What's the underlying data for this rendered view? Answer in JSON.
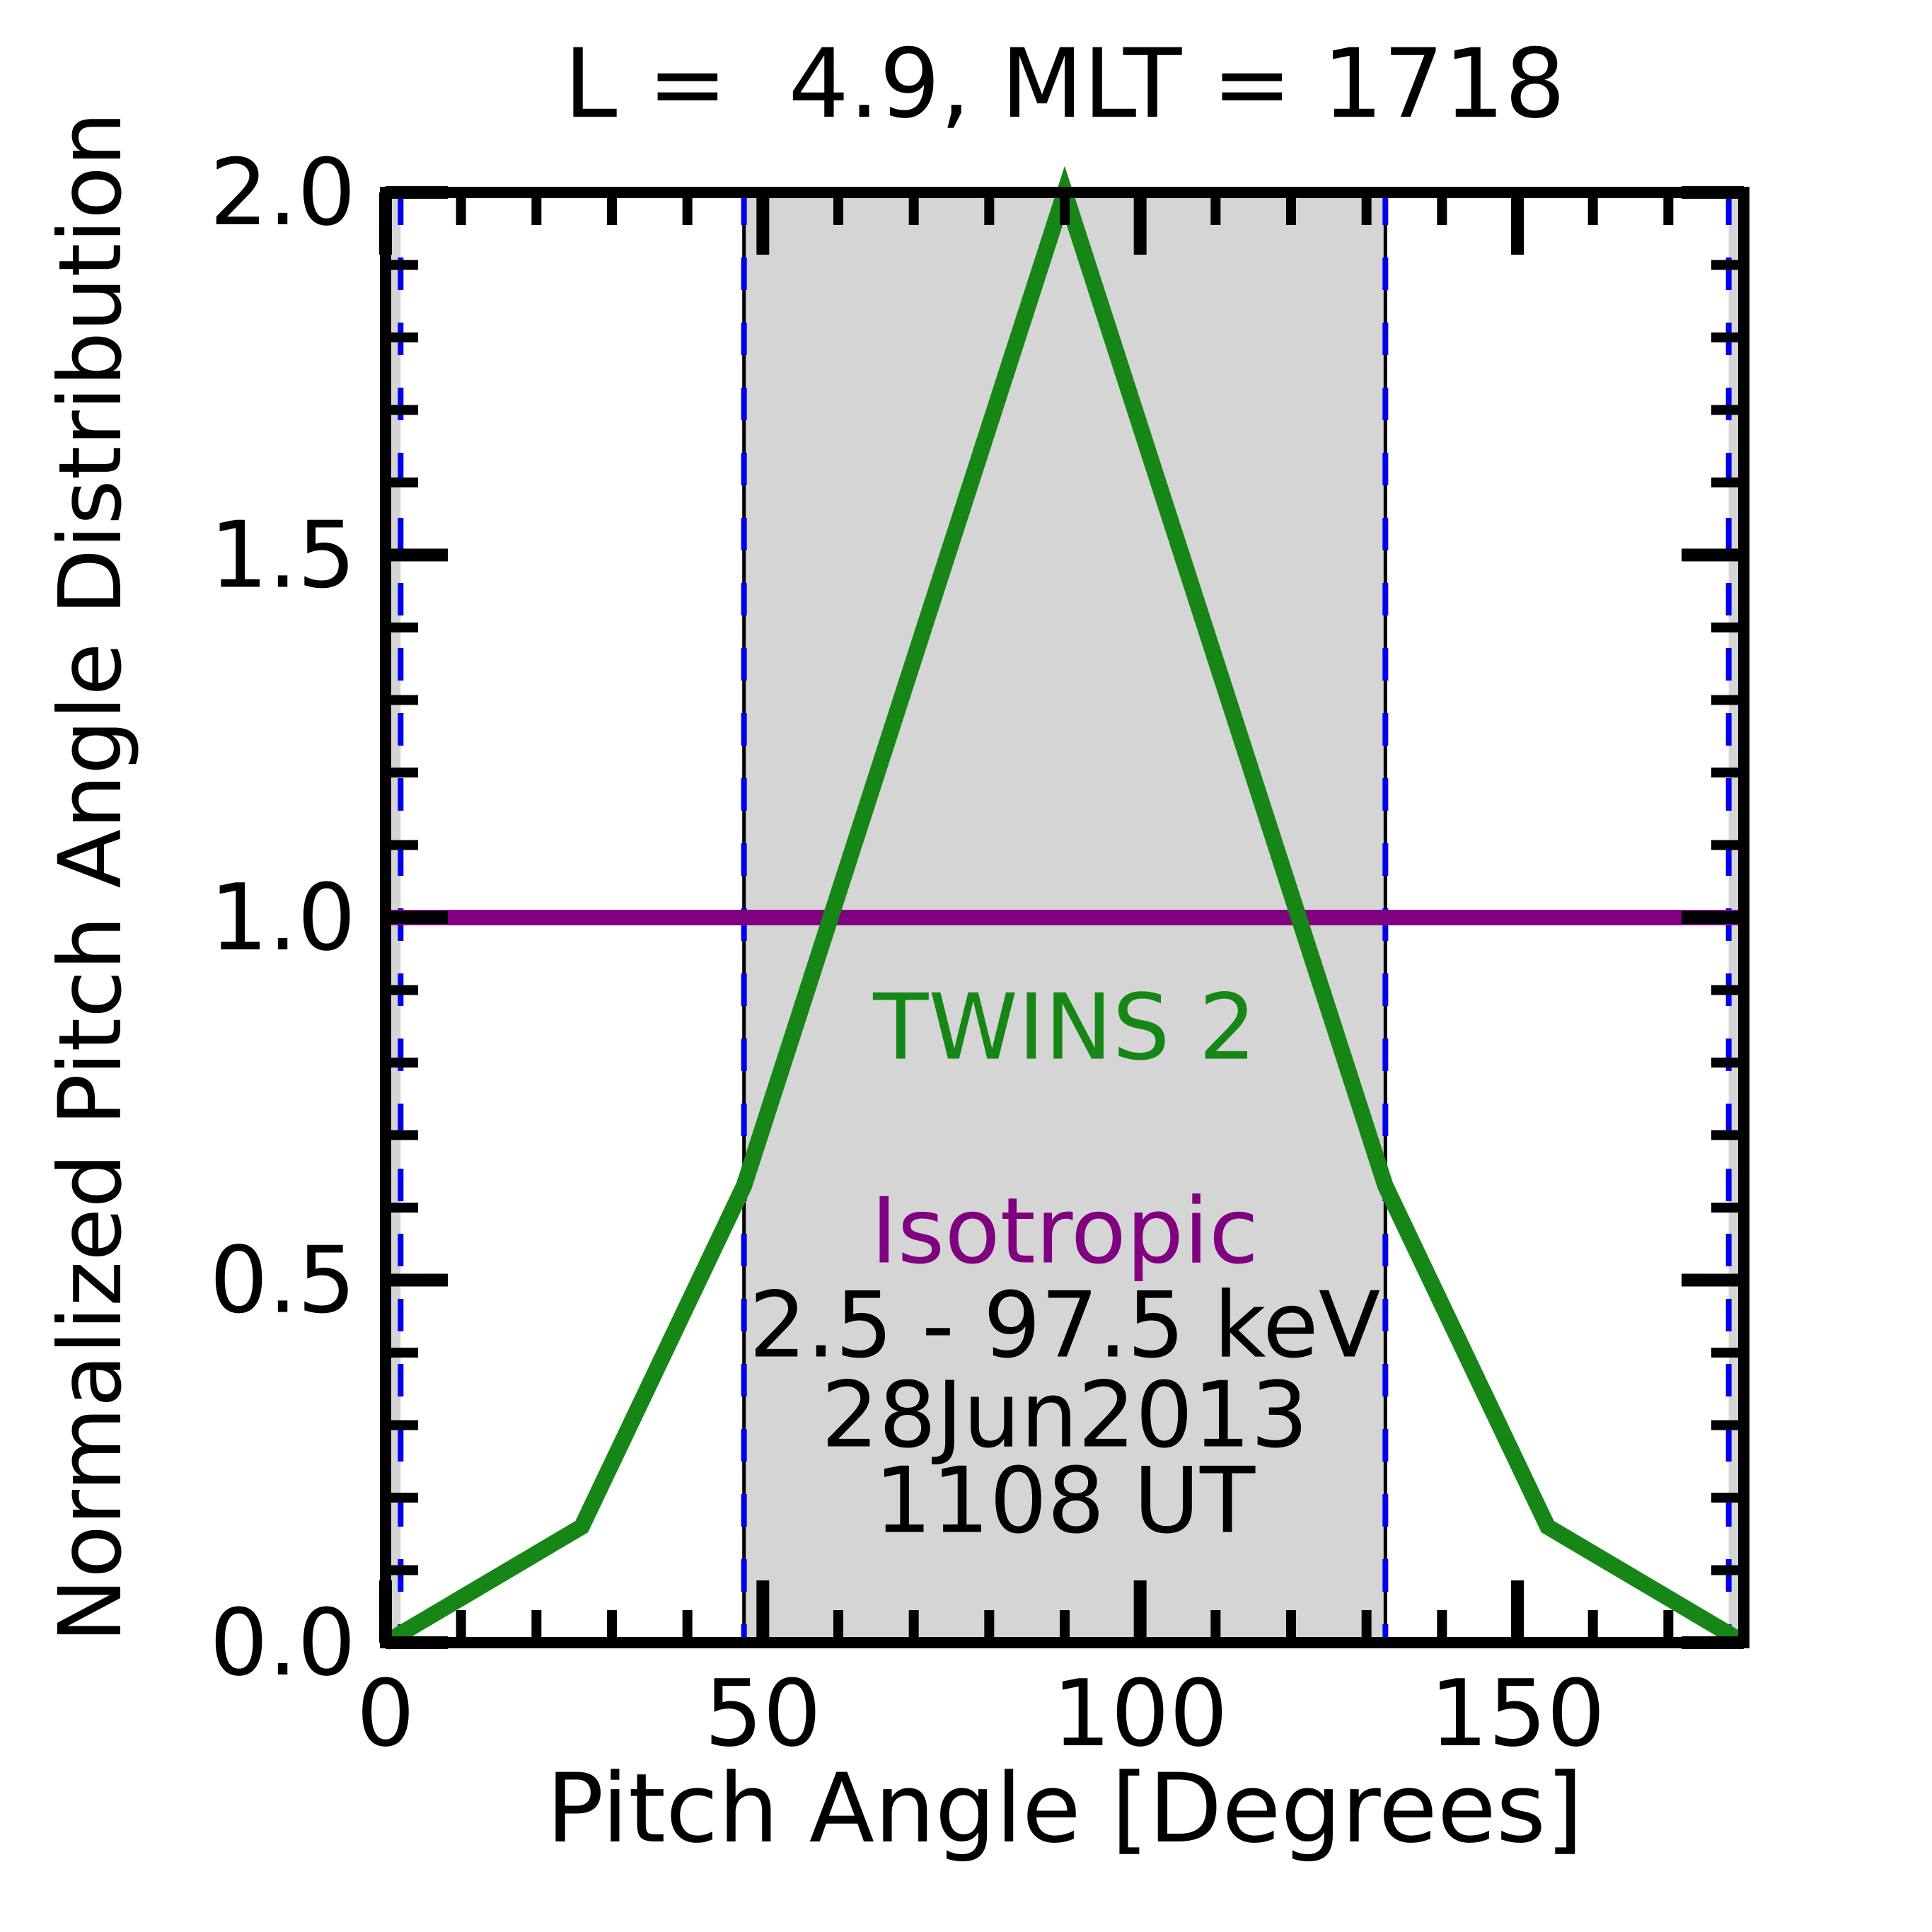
{
  "title": "L =  4.9, MLT = 1718",
  "axes": {
    "x": {
      "label": "Pitch Angle [Degrees]",
      "min": 0,
      "max": 180,
      "major_ticks": [
        0,
        50,
        100,
        150
      ],
      "tick_labels": [
        "0",
        "50",
        "100",
        "150"
      ],
      "minor_step": 10
    },
    "y": {
      "label": "Normalized Pitch Angle Distribution",
      "min": 0.0,
      "max": 2.0,
      "major_ticks": [
        0.0,
        0.5,
        1.0,
        1.5,
        2.0
      ],
      "tick_labels": [
        "0.0",
        "0.5",
        "1.0",
        "1.5",
        "2.0"
      ],
      "minor_step": 0.1
    }
  },
  "chart_data": {
    "type": "line",
    "title": "L =  4.9, MLT = 1718",
    "xlabel": "Pitch Angle [Degrees]",
    "ylabel": "Normalized Pitch Angle Distribution",
    "xlim": [
      0,
      180
    ],
    "ylim": [
      0.0,
      2.0
    ],
    "grid": false,
    "legend_position": "none",
    "series": [
      {
        "name": "TWINS 2",
        "color": "#168716",
        "width": 23,
        "points": [
          [
            0,
            0
          ],
          [
            26,
            0.16
          ],
          [
            47.5,
            0.63
          ],
          [
            90,
            2.0
          ],
          [
            132.5,
            0.63
          ],
          [
            154,
            0.16
          ],
          [
            180,
            0
          ]
        ]
      },
      {
        "name": "Isotropic",
        "color": "#800080",
        "width": 22,
        "points": [
          [
            0,
            1.0
          ],
          [
            180,
            1.0
          ]
        ]
      }
    ],
    "shaded_bands_x": [
      [
        0,
        2
      ],
      [
        47.5,
        132.5
      ],
      [
        178,
        180
      ]
    ],
    "band_edge_solid_lines_x": [
      47.5,
      132.5
    ],
    "dashed_lines_x": [
      2,
      47.5,
      132.5,
      178
    ],
    "annotations": [
      {
        "id": "series-label-twins2",
        "text": "TWINS 2",
        "x": 90,
        "y": 0.848,
        "color": "#168716"
      },
      {
        "id": "series-label-isotropic",
        "text": "Isotropic",
        "x": 90,
        "y": 0.567,
        "color": "#800080"
      },
      {
        "id": "annotation-energy-range",
        "text": "2.5 - 97.5 keV",
        "x": 90,
        "y": 0.437,
        "color": "#000000"
      },
      {
        "id": "annotation-date",
        "text": "28Jun2013",
        "x": 90,
        "y": 0.313,
        "color": "#000000"
      },
      {
        "id": "annotation-time",
        "text": "1108 UT",
        "x": 90,
        "y": 0.195,
        "color": "#000000"
      }
    ]
  },
  "colors": {
    "background": "#ffffff",
    "frame": "#000000",
    "shade": "#d5d5d5",
    "dashed_line": "#0000ee",
    "band_edge": "#000000",
    "green_series": "#168716",
    "purple_series": "#800080"
  }
}
